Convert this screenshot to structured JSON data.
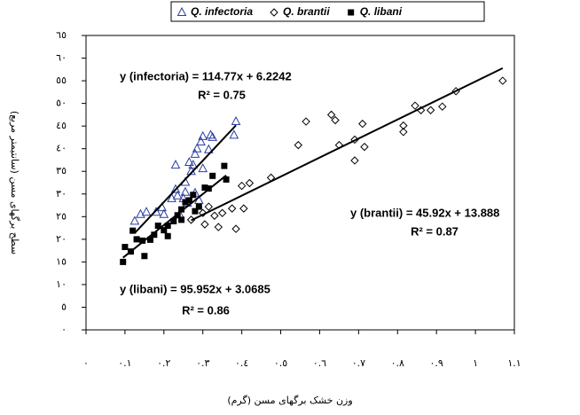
{
  "chart_data": {
    "type": "scatter",
    "x_label": "وزن خشک برگهای مسن (گرم)",
    "y_label": "سطح برگهای مسن (سانتیمتر مربع)",
    "xlim": [
      0,
      1.1
    ],
    "ylim": [
      0,
      65
    ],
    "xticks": [
      {
        "value": 0,
        "label": "٠"
      },
      {
        "value": 0.1,
        "label": "٠.١"
      },
      {
        "value": 0.2,
        "label": "٠.٢"
      },
      {
        "value": 0.3,
        "label": "٠.٣"
      },
      {
        "value": 0.4,
        "label": "٠.٤"
      },
      {
        "value": 0.5,
        "label": "٠.٥"
      },
      {
        "value": 0.6,
        "label": "٠.٦"
      },
      {
        "value": 0.7,
        "label": "٠.٧"
      },
      {
        "value": 0.8,
        "label": "٠.٨"
      },
      {
        "value": 0.9,
        "label": "٠.٩"
      },
      {
        "value": 1,
        "label": "١"
      },
      {
        "value": 1.1,
        "label": "١.١"
      }
    ],
    "yticks": [
      {
        "value": 0,
        "label": "٠"
      },
      {
        "value": 5,
        "label": "٥"
      },
      {
        "value": 10,
        "label": "١٠"
      },
      {
        "value": 15,
        "label": "١٥"
      },
      {
        "value": 20,
        "label": "٢٠"
      },
      {
        "value": 25,
        "label": "٢٥"
      },
      {
        "value": 30,
        "label": "٣٠"
      },
      {
        "value": 35,
        "label": "٣٥"
      },
      {
        "value": 40,
        "label": "٤٠"
      },
      {
        "value": 45,
        "label": "٤٥"
      },
      {
        "value": 50,
        "label": "٥٠"
      },
      {
        "value": 55,
        "label": "٥٥"
      },
      {
        "value": 60,
        "label": "٦٠"
      },
      {
        "value": 65,
        "label": "٦٥"
      }
    ],
    "grid": false,
    "trendlines": true,
    "series": [
      {
        "name": "Q. infectoria",
        "color": "#2a3fa0",
        "marker": "triangle",
        "x": [
          0.125,
          0.14,
          0.155,
          0.18,
          0.195,
          0.2,
          0.22,
          0.23,
          0.235,
          0.24,
          0.25,
          0.255,
          0.265,
          0.27,
          0.275,
          0.28,
          0.285,
          0.295,
          0.3,
          0.315,
          0.32,
          0.325,
          0.23,
          0.255,
          0.28,
          0.29,
          0.26,
          0.38,
          0.385,
          0.3
        ],
        "values": [
          24,
          25.5,
          26,
          26,
          27,
          25.5,
          29,
          31,
          29.6,
          25.5,
          29,
          32.6,
          37,
          35,
          36.4,
          38.8,
          40,
          41.5,
          42.7,
          39.8,
          43,
          42.5,
          36.4,
          30.4,
          30.2,
          28.6,
          28,
          43,
          46,
          35.6
        ]
      },
      {
        "name": "Q. brantii",
        "color": "#000000",
        "marker": "diamond",
        "x": [
          0.27,
          0.3,
          0.315,
          0.33,
          0.35,
          0.375,
          0.385,
          0.4,
          0.405,
          0.42,
          0.475,
          0.545,
          0.565,
          0.63,
          0.64,
          0.65,
          0.69,
          0.69,
          0.71,
          0.715,
          0.815,
          0.815,
          0.845,
          0.86,
          0.885,
          0.915,
          0.95,
          1.07,
          0.305,
          0.34
        ],
        "values": [
          24.3,
          25.8,
          27.2,
          25.2,
          25.8,
          26.8,
          22.3,
          31.8,
          26.8,
          32.4,
          33.6,
          40.8,
          46,
          47.5,
          46.3,
          40.8,
          42,
          37.4,
          45.5,
          40.4,
          43.7,
          45.1,
          49.5,
          48.5,
          48.5,
          49.3,
          52.7,
          55,
          23.3,
          22.7
        ]
      },
      {
        "name": "Q. libani",
        "color": "#000000",
        "marker": "square",
        "x": [
          0.095,
          0.1,
          0.115,
          0.12,
          0.13,
          0.145,
          0.165,
          0.175,
          0.185,
          0.2,
          0.21,
          0.225,
          0.235,
          0.245,
          0.255,
          0.265,
          0.275,
          0.28,
          0.29,
          0.305,
          0.315,
          0.325,
          0.36,
          0.355,
          0.15,
          0.21,
          0.245
        ],
        "values": [
          15,
          18.3,
          17.3,
          21.9,
          20,
          19.7,
          19.9,
          21,
          23,
          22,
          23,
          24,
          25.3,
          26.6,
          28.2,
          28.6,
          29.8,
          26.2,
          27.2,
          31.4,
          31.2,
          34,
          33.2,
          36.2,
          16.3,
          20.7,
          24.3
        ]
      }
    ],
    "annotations": [
      "y (infectoria) = 114.77x + 6.2242",
      "R² = 0.75",
      "y (brantii) = 45.92x + 13.888",
      "R² = 0.87",
      "y (libani) = 95.952x + 3.0685",
      "R² = 0.86"
    ]
  }
}
